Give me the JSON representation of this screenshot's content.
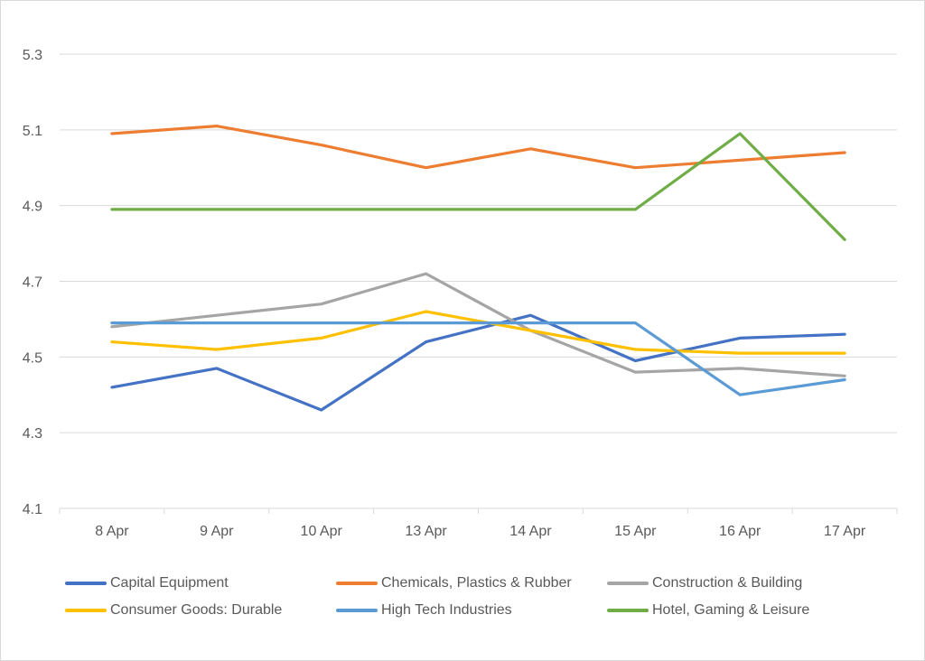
{
  "chart_data": {
    "type": "line",
    "title": "",
    "xlabel": "",
    "ylabel": "",
    "categories": [
      "8 Apr",
      "9 Apr",
      "10 Apr",
      "13 Apr",
      "14 Apr",
      "15 Apr",
      "16 Apr",
      "17 Apr"
    ],
    "ylim": [
      4.1,
      5.3
    ],
    "yticks": [
      4.1,
      4.3,
      4.5,
      4.7,
      4.9,
      5.1,
      5.3
    ],
    "ytick_labels": [
      "4.1",
      "4.3",
      "4.5",
      "4.7",
      "4.9",
      "5.1",
      "5.3"
    ],
    "grid": true,
    "legend_position": "bottom",
    "series": [
      {
        "name": "Capital Equipment",
        "color": "#4472C4",
        "values": [
          4.42,
          4.47,
          4.36,
          4.54,
          4.61,
          4.49,
          4.55,
          4.56
        ]
      },
      {
        "name": "Chemicals, Plastics & Rubber",
        "color": "#ED7D31",
        "values": [
          5.09,
          5.11,
          5.06,
          5.0,
          5.05,
          5.0,
          5.02,
          5.04
        ]
      },
      {
        "name": "Construction & Building",
        "color": "#A5A5A5",
        "values": [
          4.58,
          4.61,
          4.64,
          4.72,
          4.57,
          4.46,
          4.47,
          4.45
        ]
      },
      {
        "name": "Consumer Goods: Durable",
        "color": "#FFC000",
        "values": [
          4.54,
          4.52,
          4.55,
          4.62,
          4.57,
          4.52,
          4.51,
          4.51
        ]
      },
      {
        "name": "High Tech Industries",
        "color": "#5B9BD5",
        "values": [
          4.59,
          4.59,
          4.59,
          4.59,
          4.59,
          4.59,
          4.4,
          4.44
        ]
      },
      {
        "name": "Hotel, Gaming & Leisure",
        "color": "#70AD47",
        "values": [
          4.89,
          4.89,
          4.89,
          4.89,
          4.89,
          4.89,
          5.09,
          4.81
        ]
      }
    ]
  }
}
